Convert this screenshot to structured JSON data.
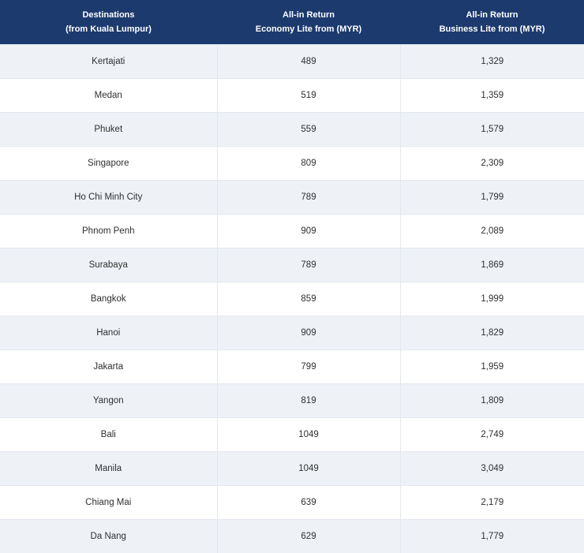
{
  "table": {
    "headers": [
      "Destinations\n(from Kuala Lumpur)",
      "All-in Return\nEconomy Lite from (MYR)",
      "All-in Return\nBusiness Lite from (MYR)"
    ],
    "rows": [
      [
        "Kertajati",
        "489",
        "1,329"
      ],
      [
        "Medan",
        "519",
        "1,359"
      ],
      [
        "Phuket",
        "559",
        "1,579"
      ],
      [
        "Singapore",
        "809",
        "2,309"
      ],
      [
        "Ho Chi Minh City",
        "789",
        "1,799"
      ],
      [
        "Phnom Penh",
        "909",
        "2,089"
      ],
      [
        "Surabaya",
        "789",
        "1,869"
      ],
      [
        "Bangkok",
        "859",
        "1,999"
      ],
      [
        "Hanoi",
        "909",
        "1,829"
      ],
      [
        "Jakarta",
        "799",
        "1,959"
      ],
      [
        "Yangon",
        "819",
        "1,809"
      ],
      [
        "Bali",
        "1049",
        "2,749"
      ],
      [
        "Manila",
        "1049",
        "3,049"
      ],
      [
        "Chiang Mai",
        "639",
        "2,179"
      ],
      [
        "Da Nang",
        "629",
        "1,779"
      ]
    ]
  },
  "colors": {
    "header_bg": "#1d3a6e",
    "header_text": "#ffffff",
    "row_alt_bg": "#eef2f7",
    "row_bg": "#ffffff"
  }
}
